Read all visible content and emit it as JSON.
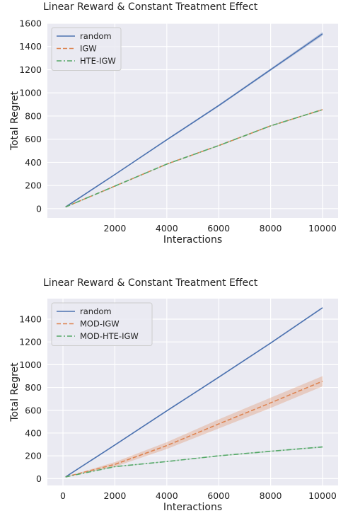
{
  "chart_data": [
    {
      "type": "line",
      "title": "Linear Reward & Constant Treatment Effect",
      "xlabel": "Interactions",
      "ylabel": "Total Regret",
      "xlim": [
        -600,
        10600
      ],
      "ylim": [
        -80,
        1600
      ],
      "xticks": [
        2000,
        4000,
        6000,
        8000,
        10000
      ],
      "yticks": [
        0,
        200,
        400,
        600,
        800,
        1000,
        1200,
        1400,
        1600
      ],
      "grid": true,
      "legend": "top-left",
      "series": [
        {
          "name": "random",
          "color": "#4c72b0",
          "dash": "solid",
          "x": [
            100,
            2000,
            4000,
            6000,
            8000,
            10000
          ],
          "y": [
            15,
            295,
            595,
            890,
            1200,
            1510
          ],
          "band": [
            [
              15,
              15
            ],
            [
              290,
              300
            ],
            [
              588,
              602
            ],
            [
              882,
              898
            ],
            [
              1190,
              1210
            ],
            [
              1495,
              1525
            ]
          ]
        },
        {
          "name": "IGW",
          "color": "#dd8452",
          "dash": "dashed",
          "x": [
            100,
            2000,
            4000,
            6000,
            8000,
            10000
          ],
          "y": [
            15,
            195,
            385,
            545,
            715,
            855
          ],
          "band": [
            [
              15,
              15
            ],
            [
              193,
              197
            ],
            [
              382,
              388
            ],
            [
              541,
              549
            ],
            [
              711,
              719
            ],
            [
              850,
              860
            ]
          ]
        },
        {
          "name": "HTE-IGW",
          "color": "#55a868",
          "dash": "dashdot",
          "x": [
            100,
            2000,
            4000,
            6000,
            8000,
            10000
          ],
          "y": [
            15,
            195,
            385,
            545,
            715,
            855
          ],
          "band": [
            [
              15,
              15
            ],
            [
              193,
              197
            ],
            [
              382,
              388
            ],
            [
              541,
              549
            ],
            [
              711,
              719
            ],
            [
              850,
              860
            ]
          ]
        }
      ]
    },
    {
      "type": "line",
      "title": "Linear Reward & Constant Treatment Effect",
      "xlabel": "Interactions",
      "ylabel": "Total Regret",
      "xlim": [
        -600,
        10600
      ],
      "ylim": [
        -60,
        1580
      ],
      "xticks": [
        0,
        2000,
        4000,
        6000,
        8000,
        10000
      ],
      "yticks": [
        0,
        200,
        400,
        600,
        800,
        1000,
        1200,
        1400
      ],
      "grid": true,
      "legend": "top-left",
      "series": [
        {
          "name": "random",
          "color": "#4c72b0",
          "dash": "solid",
          "x": [
            100,
            2000,
            4000,
            6000,
            8000,
            10000
          ],
          "y": [
            15,
            295,
            595,
            890,
            1190,
            1500
          ],
          "band": [
            [
              15,
              15
            ],
            [
              292,
              298
            ],
            [
              590,
              600
            ],
            [
              884,
              896
            ],
            [
              1184,
              1196
            ],
            [
              1493,
              1507
            ]
          ]
        },
        {
          "name": "MOD-IGW",
          "color": "#dd8452",
          "dash": "dashed",
          "x": [
            100,
            2000,
            4000,
            6000,
            8000,
            10000
          ],
          "y": [
            15,
            125,
            290,
            480,
            665,
            855
          ],
          "band": [
            [
              15,
              15
            ],
            [
              105,
              145
            ],
            [
              260,
              320
            ],
            [
              440,
              520
            ],
            [
              620,
              710
            ],
            [
              810,
              900
            ]
          ]
        },
        {
          "name": "MOD-HTE-IGW",
          "color": "#55a868",
          "dash": "dashdot",
          "x": [
            100,
            2000,
            4000,
            6000,
            8000,
            10000
          ],
          "y": [
            15,
            105,
            150,
            200,
            240,
            278
          ],
          "band": [
            [
              15,
              15
            ],
            [
              101,
              109
            ],
            [
              146,
              154
            ],
            [
              195,
              205
            ],
            [
              234,
              246
            ],
            [
              272,
              284
            ]
          ]
        }
      ]
    }
  ]
}
